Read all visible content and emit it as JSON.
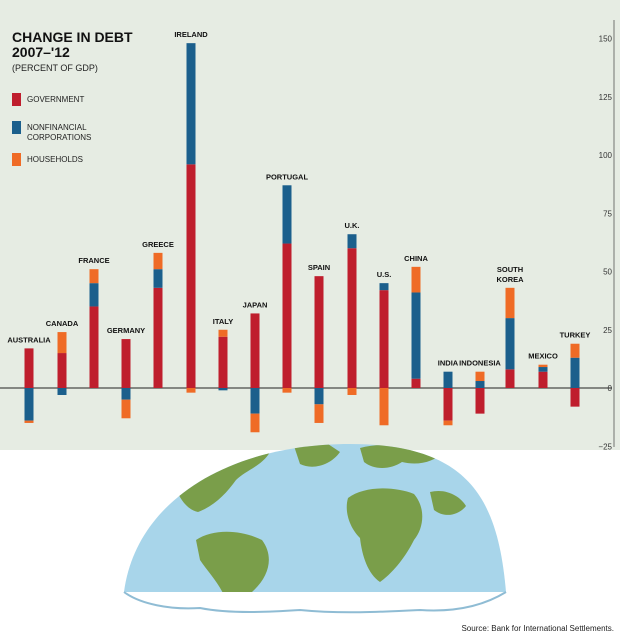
{
  "title_line1": "CHANGE IN DEBT",
  "title_line2": "2007–'12",
  "subtitle": "(PERCENT OF GDP)",
  "source": "Source: Bank for International Settlements.",
  "legend": [
    {
      "label": "GOVERNMENT",
      "color": "#bf1e2d"
    },
    {
      "label": "NONFINANCIAL CORPORATIONS",
      "color": "#1b5f8c"
    },
    {
      "label": "HOUSEHOLDS",
      "color": "#ef6b26"
    }
  ],
  "chart_data": {
    "type": "bar",
    "stacked": true,
    "title": "CHANGE IN DEBT 2007–'12",
    "subtitle": "(PERCENT OF GDP)",
    "categories": [
      [
        "AUSTRALIA"
      ],
      [
        "CANADA"
      ],
      [
        "FRANCE"
      ],
      [
        "GERMANY"
      ],
      [
        "GREECE"
      ],
      [
        "IRELAND"
      ],
      [
        "ITALY"
      ],
      [
        "JAPAN"
      ],
      [
        "PORTUGAL"
      ],
      [
        "SPAIN"
      ],
      [
        "U.K."
      ],
      [
        "U.S."
      ],
      [
        "CHINA"
      ],
      [
        "INDIA"
      ],
      [
        "INDONESIA"
      ],
      [
        "SOUTH",
        "KOREA"
      ],
      [
        "MEXICO"
      ],
      [
        "TURKEY"
      ]
    ],
    "series": [
      {
        "name": "GOVERNMENT",
        "color": "#bf1e2d",
        "values": [
          17,
          15,
          35,
          21,
          43,
          96,
          22,
          32,
          62,
          48,
          60,
          42,
          4,
          -14,
          -11,
          8,
          7,
          -8
        ]
      },
      {
        "name": "NONFINANCIAL CORPORATIONS",
        "color": "#1b5f8c",
        "values": [
          -14,
          -3,
          10,
          -5,
          8,
          52,
          -1,
          -11,
          25,
          -7,
          6,
          3,
          37,
          7,
          3,
          22,
          2,
          13
        ]
      },
      {
        "name": "HOUSEHOLDS",
        "color": "#ef6b26",
        "values": [
          -1,
          9,
          6,
          -8,
          7,
          -2,
          3,
          -8,
          -2,
          -8,
          -3,
          -16,
          11,
          -2,
          4,
          13,
          1,
          6
        ]
      }
    ],
    "ylim": [
      -25,
      150
    ],
    "yticks": [
      -25,
      0,
      25,
      50,
      75,
      100,
      125,
      150
    ],
    "grid": false,
    "legend_position": "left"
  }
}
